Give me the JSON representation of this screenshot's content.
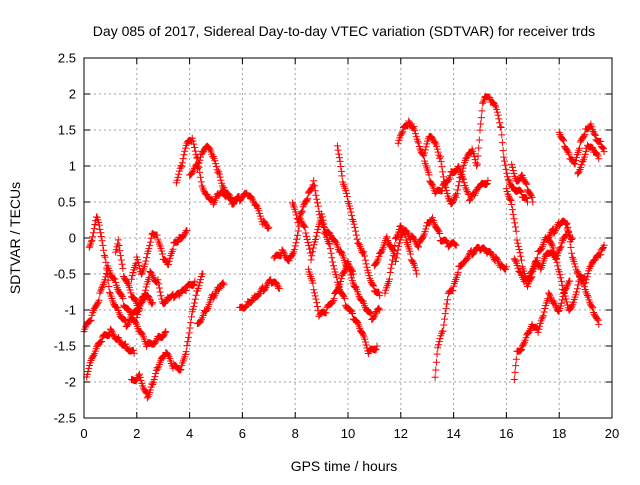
{
  "chart_data": {
    "type": "scatter",
    "title": "Day 085 of 2017, Sidereal Day-to-day VTEC variation (SDTVAR) for receiver trds",
    "xlabel": "GPS time / hours",
    "ylabel": "SDTVAR / TECUs",
    "xlim": [
      0,
      20
    ],
    "ylim": [
      -2.5,
      2.5
    ],
    "xticks": [
      "0",
      "2",
      "4",
      "6",
      "8",
      "10",
      "12",
      "14",
      "16",
      "18",
      "20"
    ],
    "yticks": [
      "-2.5",
      "-2",
      "-1.5",
      "-1",
      "-0.5",
      "0",
      "0.5",
      "1",
      "1.5",
      "2",
      "2.5"
    ],
    "grid": true,
    "marker": "plus",
    "marker_color": "#ff0000",
    "tracks": [
      [
        [
          0,
          -1.3
        ],
        [
          0.3,
          -1.1
        ],
        [
          0.6,
          -0.8
        ],
        [
          0.9,
          -0.4
        ],
        [
          1.2,
          -0.6
        ],
        [
          1.5,
          -0.9
        ],
        [
          1.8,
          -1.1
        ],
        [
          2.1,
          -1.3
        ],
        [
          2.4,
          -1.5
        ],
        [
          2.8,
          -1.4
        ],
        [
          3.1,
          -1.3
        ]
      ],
      [
        [
          0.1,
          -1.9
        ],
        [
          0.4,
          -1.6
        ],
        [
          0.7,
          -1.4
        ],
        [
          1.0,
          -1.3
        ],
        [
          1.3,
          -1.4
        ],
        [
          1.6,
          -1.5
        ],
        [
          1.9,
          -1.6
        ]
      ],
      [
        [
          0.2,
          -0.1
        ],
        [
          0.3,
          0.0
        ],
        [
          0.5,
          0.3
        ],
        [
          0.6,
          0.1
        ],
        [
          0.8,
          -0.3
        ],
        [
          1.0,
          -0.8
        ],
        [
          1.3,
          -1.0
        ],
        [
          1.6,
          -1.2
        ],
        [
          2.0,
          -1.0
        ],
        [
          2.3,
          -0.8
        ],
        [
          2.6,
          -0.9
        ]
      ],
      [
        [
          1.2,
          -0.2
        ],
        [
          1.3,
          0.0
        ],
        [
          1.5,
          -0.5
        ],
        [
          1.8,
          -0.8
        ],
        [
          2.1,
          -1.0
        ]
      ],
      [
        [
          1.8,
          -2.0
        ],
        [
          2.1,
          -1.9
        ],
        [
          2.4,
          -2.2
        ],
        [
          2.6,
          -2.0
        ],
        [
          2.8,
          -1.8
        ],
        [
          3.1,
          -1.6
        ],
        [
          3.4,
          -1.8
        ],
        [
          3.7,
          -1.8
        ],
        [
          3.9,
          -1.5
        ],
        [
          4.1,
          -1.0
        ],
        [
          4.3,
          -0.7
        ],
        [
          4.5,
          -0.5
        ]
      ],
      [
        [
          1.8,
          -0.6
        ],
        [
          2.0,
          -0.3
        ],
        [
          2.2,
          -0.5
        ],
        [
          2.4,
          -0.2
        ],
        [
          2.6,
          0.1
        ],
        [
          2.8,
          0.0
        ],
        [
          3.0,
          -0.3
        ],
        [
          3.2,
          -0.4
        ],
        [
          3.4,
          -0.1
        ],
        [
          3.6,
          0.0
        ],
        [
          3.9,
          0.1
        ]
      ],
      [
        [
          2.0,
          -1.1
        ],
        [
          2.3,
          -0.8
        ],
        [
          2.5,
          -0.5
        ],
        [
          2.8,
          -0.6
        ],
        [
          3.0,
          -0.9
        ],
        [
          3.2,
          -0.8
        ],
        [
          3.4,
          -0.8
        ],
        [
          3.6,
          -0.8
        ],
        [
          3.9,
          -0.7
        ],
        [
          4.2,
          -0.6
        ]
      ],
      [
        [
          3.5,
          0.8
        ],
        [
          3.7,
          1.0
        ],
        [
          3.9,
          1.3
        ],
        [
          4.1,
          1.35
        ],
        [
          4.3,
          1.1
        ],
        [
          4.5,
          0.7
        ],
        [
          4.7,
          0.6
        ],
        [
          4.9,
          0.5
        ],
        [
          5.1,
          0.6
        ],
        [
          5.4,
          0.6
        ],
        [
          5.7,
          0.5
        ]
      ],
      [
        [
          4.0,
          0.9
        ],
        [
          4.3,
          1.0
        ],
        [
          4.5,
          1.2
        ],
        [
          4.7,
          1.25
        ],
        [
          4.9,
          1.1
        ],
        [
          5.1,
          0.9
        ],
        [
          5.3,
          0.7
        ],
        [
          5.6,
          0.5
        ],
        [
          5.9,
          0.55
        ],
        [
          6.2,
          0.6
        ],
        [
          6.5,
          0.45
        ],
        [
          6.8,
          0.2
        ],
        [
          7.0,
          0.15
        ]
      ],
      [
        [
          4.3,
          -1.2
        ],
        [
          4.6,
          -1.0
        ],
        [
          4.9,
          -0.8
        ],
        [
          5.1,
          -0.7
        ],
        [
          5.3,
          -0.65
        ]
      ],
      [
        [
          5.9,
          -1.0
        ],
        [
          6.2,
          -0.9
        ],
        [
          6.5,
          -0.8
        ],
        [
          6.8,
          -0.7
        ],
        [
          7.1,
          -0.6
        ],
        [
          7.4,
          -0.7
        ]
      ],
      [
        [
          7.2,
          -0.3
        ],
        [
          7.5,
          -0.2
        ],
        [
          7.8,
          -0.3
        ],
        [
          8.0,
          -0.1
        ],
        [
          8.2,
          0.3
        ],
        [
          8.4,
          0.1
        ],
        [
          8.6,
          -0.3
        ],
        [
          8.8,
          0.0
        ],
        [
          9.0,
          0.3
        ],
        [
          9.3,
          -0.1
        ],
        [
          9.6,
          -0.6
        ],
        [
          9.9,
          -0.9
        ],
        [
          10.2,
          -1.1
        ],
        [
          10.5,
          -1.3
        ],
        [
          10.8,
          -1.6
        ],
        [
          11.1,
          -1.5
        ]
      ],
      [
        [
          7.9,
          0.5
        ],
        [
          8.1,
          0.2
        ],
        [
          8.3,
          0.4
        ],
        [
          8.5,
          0.6
        ],
        [
          8.7,
          0.8
        ],
        [
          8.9,
          0.4
        ],
        [
          9.1,
          0.1
        ],
        [
          9.4,
          0.0
        ],
        [
          9.7,
          -0.2
        ],
        [
          10.0,
          -0.4
        ],
        [
          10.3,
          -0.7
        ],
        [
          10.6,
          -0.9
        ],
        [
          10.9,
          -1.1
        ],
        [
          11.2,
          -1.0
        ]
      ],
      [
        [
          8.5,
          -0.4
        ],
        [
          8.7,
          -0.7
        ],
        [
          8.9,
          -1.1
        ],
        [
          9.2,
          -1.0
        ],
        [
          9.5,
          -0.8
        ],
        [
          9.8,
          -0.5
        ],
        [
          10.0,
          -0.3
        ],
        [
          10.2,
          -0.5
        ]
      ],
      [
        [
          9.6,
          1.3
        ],
        [
          9.7,
          1.1
        ],
        [
          9.8,
          0.8
        ],
        [
          10.0,
          0.5
        ],
        [
          10.2,
          0.2
        ],
        [
          10.4,
          -0.1
        ],
        [
          10.6,
          -0.2
        ],
        [
          10.8,
          -0.5
        ],
        [
          11.0,
          -0.7
        ],
        [
          11.2,
          -0.8
        ]
      ],
      [
        [
          11.0,
          -0.4
        ],
        [
          11.2,
          -0.2
        ],
        [
          11.5,
          0.0
        ],
        [
          11.8,
          -0.3
        ],
        [
          12.1,
          0.1
        ],
        [
          12.4,
          0.0
        ],
        [
          12.7,
          -0.1
        ],
        [
          13.0,
          0.2
        ],
        [
          13.2,
          0.3
        ],
        [
          13.5,
          0.0
        ],
        [
          13.8,
          -0.1
        ],
        [
          14.1,
          -0.1
        ]
      ],
      [
        [
          11.4,
          -0.8
        ],
        [
          11.6,
          -0.5
        ],
        [
          11.8,
          0.0
        ],
        [
          12.0,
          0.2
        ],
        [
          12.2,
          0.0
        ],
        [
          12.4,
          -0.3
        ],
        [
          12.6,
          -0.5
        ]
      ],
      [
        [
          11.9,
          1.3
        ],
        [
          12.1,
          1.5
        ],
        [
          12.3,
          1.6
        ],
        [
          12.5,
          1.55
        ],
        [
          12.7,
          1.3
        ],
        [
          12.9,
          1.1
        ],
        [
          13.1,
          0.8
        ],
        [
          13.3,
          0.6
        ],
        [
          13.6,
          0.7
        ],
        [
          13.9,
          0.9
        ],
        [
          14.2,
          1.0
        ],
        [
          14.4,
          0.8
        ],
        [
          14.6,
          0.55
        ],
        [
          14.8,
          0.6
        ],
        [
          15.0,
          0.7
        ],
        [
          15.3,
          0.8
        ]
      ],
      [
        [
          12.9,
          1.2
        ],
        [
          13.1,
          1.4
        ],
        [
          13.3,
          1.3
        ],
        [
          13.5,
          1.1
        ],
        [
          13.7,
          0.7
        ],
        [
          13.9,
          0.5
        ],
        [
          14.1,
          0.6
        ],
        [
          14.3,
          0.9
        ],
        [
          14.5,
          1.1
        ],
        [
          14.7,
          1.2
        ],
        [
          14.9,
          1.0
        ],
        [
          15.0,
          1.5
        ],
        [
          15.1,
          1.9
        ],
        [
          15.2,
          2.0
        ],
        [
          15.4,
          1.9
        ],
        [
          15.6,
          1.8
        ],
        [
          15.8,
          1.5
        ],
        [
          15.9,
          1.1
        ],
        [
          16.1,
          0.8
        ],
        [
          16.3,
          0.7
        ],
        [
          16.6,
          0.6
        ],
        [
          16.8,
          0.5
        ]
      ],
      [
        [
          13.3,
          -1.9
        ],
        [
          13.4,
          -1.5
        ],
        [
          13.6,
          -1.3
        ],
        [
          13.8,
          -0.8
        ],
        [
          14.0,
          -0.7
        ],
        [
          14.2,
          -0.4
        ],
        [
          14.4,
          -0.3
        ],
        [
          14.7,
          -0.2
        ],
        [
          15.0,
          -0.15
        ],
        [
          15.3,
          -0.2
        ],
        [
          15.6,
          -0.3
        ],
        [
          15.8,
          -0.4
        ],
        [
          16.0,
          -0.4
        ]
      ],
      [
        [
          16.0,
          0.7
        ],
        [
          16.2,
          0.5
        ],
        [
          16.4,
          0.0
        ],
        [
          16.6,
          -0.4
        ],
        [
          16.8,
          -0.7
        ],
        [
          17.0,
          -0.5
        ],
        [
          17.2,
          -0.2
        ],
        [
          17.5,
          0.0
        ],
        [
          17.8,
          0.1
        ],
        [
          18.0,
          0.2
        ],
        [
          18.3,
          0.2
        ],
        [
          18.5,
          -0.3
        ],
        [
          18.7,
          -0.5
        ],
        [
          18.9,
          -0.6
        ],
        [
          19.1,
          -0.8
        ],
        [
          19.3,
          -1.0
        ],
        [
          19.5,
          -1.2
        ]
      ],
      [
        [
          16.2,
          1.0
        ],
        [
          16.4,
          0.8
        ],
        [
          16.6,
          0.9
        ],
        [
          16.8,
          0.7
        ],
        [
          17.0,
          0.5
        ]
      ],
      [
        [
          16.3,
          -2.0
        ],
        [
          16.4,
          -1.6
        ],
        [
          16.6,
          -1.5
        ],
        [
          16.8,
          -1.3
        ],
        [
          17.0,
          -1.2
        ],
        [
          17.2,
          -1.3
        ],
        [
          17.4,
          -1.1
        ],
        [
          17.6,
          -0.8
        ],
        [
          17.8,
          -0.9
        ],
        [
          18.0,
          -1.0
        ],
        [
          18.2,
          -0.7
        ],
        [
          18.4,
          -0.6
        ]
      ],
      [
        [
          16.3,
          -0.3
        ],
        [
          16.5,
          -0.5
        ],
        [
          16.7,
          -0.6
        ],
        [
          16.9,
          -0.5
        ],
        [
          17.1,
          -0.3
        ],
        [
          17.3,
          -0.4
        ],
        [
          17.6,
          -0.2
        ],
        [
          17.9,
          -0.3
        ],
        [
          18.1,
          -0.1
        ],
        [
          18.3,
          0.1
        ],
        [
          18.5,
          0.0
        ]
      ],
      [
        [
          17.6,
          0.0
        ],
        [
          17.8,
          -0.2
        ],
        [
          18.0,
          -0.5
        ],
        [
          18.2,
          -0.8
        ],
        [
          18.4,
          -1.0
        ],
        [
          18.6,
          -0.8
        ],
        [
          18.8,
          -0.5
        ],
        [
          19.0,
          -0.6
        ],
        [
          19.2,
          -0.4
        ],
        [
          19.4,
          -0.3
        ],
        [
          19.6,
          -0.2
        ],
        [
          19.7,
          -0.1
        ]
      ],
      [
        [
          18.0,
          1.5
        ],
        [
          18.2,
          1.3
        ],
        [
          18.4,
          1.1
        ],
        [
          18.6,
          1.0
        ],
        [
          18.8,
          1.3
        ],
        [
          19.0,
          1.5
        ],
        [
          19.2,
          1.6
        ],
        [
          19.4,
          1.4
        ],
        [
          19.6,
          1.3
        ],
        [
          19.7,
          1.2
        ]
      ],
      [
        [
          18.7,
          0.9
        ],
        [
          18.9,
          1.1
        ],
        [
          19.1,
          1.3
        ],
        [
          19.3,
          1.2
        ],
        [
          19.5,
          1.1
        ]
      ]
    ]
  }
}
